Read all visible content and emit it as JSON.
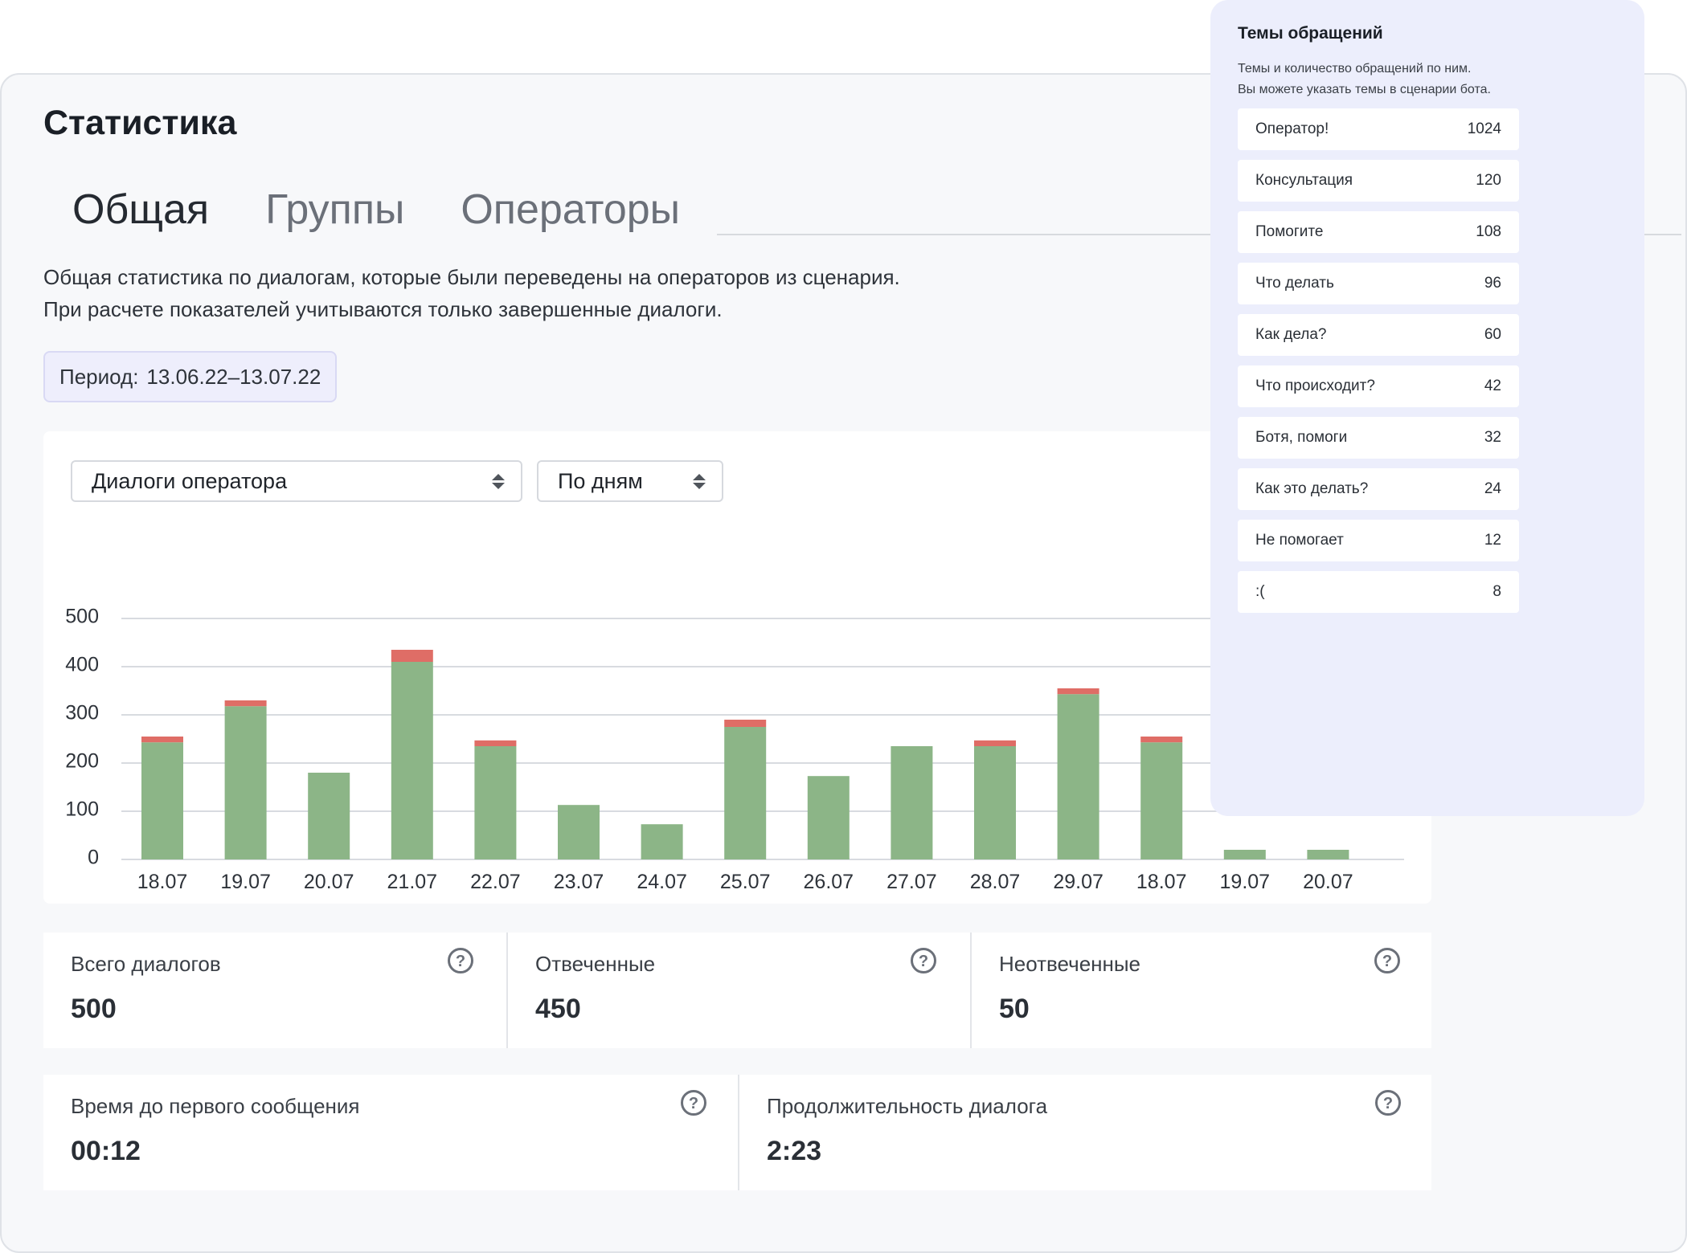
{
  "page": {
    "title": "Статистика",
    "tabs": [
      {
        "label": "Общая",
        "active": true
      },
      {
        "label": "Группы",
        "active": false
      },
      {
        "label": "Операторы",
        "active": false
      }
    ],
    "description": "Общая статистика по диалогам, которые были переведены на операторов из сценария. При расчете показателей учитываются только завершенные диалоги.",
    "period_label": "Период:",
    "period_value": "13.06.22–13.07.22"
  },
  "filters": {
    "metric_select": "Диалоги оператора",
    "granularity_select": "По дням"
  },
  "colors": {
    "answered": "#8cb587",
    "unanswered": "#df6d66",
    "grid": "#d8dbe0",
    "accent_bg": "#eeeefc"
  },
  "chart_data": {
    "type": "bar",
    "stacked": true,
    "categories": [
      "18.07",
      "19.07",
      "20.07",
      "21.07",
      "22.07",
      "23.07",
      "24.07",
      "25.07",
      "26.07",
      "27.07",
      "28.07",
      "29.07",
      "18.07",
      "19.07",
      "20.07"
    ],
    "series": [
      {
        "values": [
          243,
          318,
          180,
          410,
          235,
          113,
          73,
          275,
          173,
          235,
          235,
          343,
          243,
          20,
          20
        ]
      },
      {
        "values": [
          12,
          12,
          0,
          25,
          12,
          0,
          0,
          15,
          0,
          0,
          12,
          12,
          12,
          0,
          0
        ]
      }
    ],
    "ylim": [
      0,
      500
    ],
    "yticks": [
      0,
      100,
      200,
      300,
      400,
      500
    ],
    "grid": true
  },
  "metrics_top": [
    {
      "label": "Всего диалогов",
      "value": "500"
    },
    {
      "label": "Отвеченные",
      "value": "450"
    },
    {
      "label": "Неотвеченные",
      "value": "50"
    }
  ],
  "metrics_bottom": [
    {
      "label": "Время до первого сообщения",
      "value": "00:12"
    },
    {
      "label": "Продолжительность диалога",
      "value": "2:23"
    }
  ],
  "topics": {
    "title": "Темы обращений",
    "subtitle_1": "Темы и количество обращений по ним.",
    "subtitle_2": "Вы можете указать темы в сценарии бота.",
    "items": [
      {
        "name": "Оператор!",
        "count": "1024"
      },
      {
        "name": "Консультация",
        "count": "120"
      },
      {
        "name": "Помогите",
        "count": "108"
      },
      {
        "name": "Что делать",
        "count": "96"
      },
      {
        "name": "Как дела?",
        "count": "60"
      },
      {
        "name": "Что происходит?",
        "count": "42"
      },
      {
        "name": "Ботя, помоги",
        "count": "32"
      },
      {
        "name": "Как это делать?",
        "count": "24"
      },
      {
        "name": "Не помогает",
        "count": "12"
      },
      {
        "name": ":(",
        "count": "8"
      }
    ]
  }
}
